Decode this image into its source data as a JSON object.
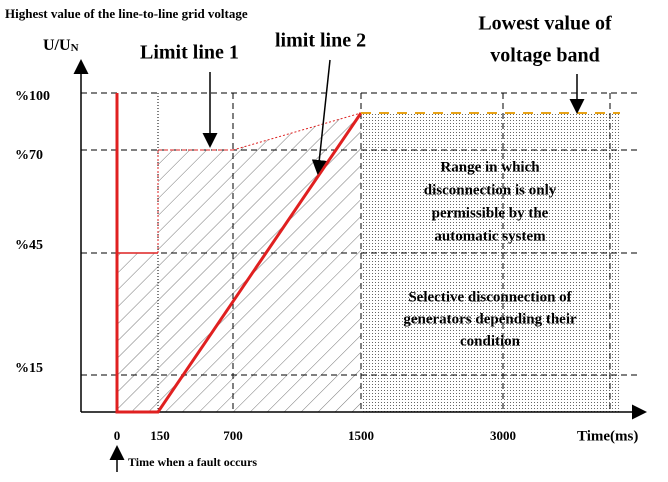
{
  "title": "Highest value of the line-to-line grid voltage",
  "y_axis": {
    "label": "U/U",
    "label_subscript": "N",
    "ticks": [
      "%100",
      "%70",
      "%45",
      "%15"
    ]
  },
  "x_axis": {
    "label": "Time(ms)",
    "ticks": [
      "0",
      "150",
      "700",
      "1500",
      "3000"
    ]
  },
  "annotations": {
    "limit_line_1": "Limit line 1",
    "limit_line_2": "limit line 2",
    "lowest_band": [
      "Lowest value of",
      "voltage band"
    ],
    "fault_time": "Time when a fault occurs"
  },
  "regions": {
    "automatic": [
      "Range in which",
      "disconnection is only",
      "permissible by the",
      "automatic system"
    ],
    "selective": [
      "Selective disconnection of",
      "generators depending their",
      "condition"
    ]
  }
}
